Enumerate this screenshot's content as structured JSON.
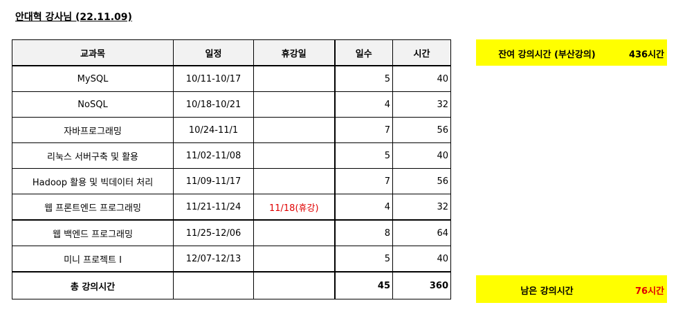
{
  "title": "안대혁 강사님 (22.11.09)",
  "table": {
    "headers": [
      "교과목",
      "일정",
      "휴강일",
      "일수",
      "시간"
    ],
    "rows": [
      {
        "subject": "MySQL",
        "period": "10/11-10/17",
        "holiday": "",
        "days": "5",
        "hours": "40"
      },
      {
        "subject": "NoSQL",
        "period": "10/18-10/21",
        "holiday": "",
        "days": "4",
        "hours": "32"
      },
      {
        "subject": "자바프로그래밍",
        "period": "10/24-11/1",
        "holiday": "",
        "days": "7",
        "hours": "56"
      },
      {
        "subject": "리눅스 서버구축 및 활용",
        "period": "11/02-11/08",
        "holiday": "",
        "days": "5",
        "hours": "40"
      },
      {
        "subject": "Hadoop 활용 및 빅데이터 처리",
        "period": "11/09-11/17",
        "holiday": "",
        "days": "7",
        "hours": "56"
      },
      {
        "subject": "웹 프론트엔드 프로그래밍",
        "period": "11/21-11/24",
        "holiday": "11/18(휴강)",
        "days": "4",
        "hours": "32"
      },
      {
        "subject": "웹 백엔드 프로그래밍",
        "period": "11/25-12/06",
        "holiday": "",
        "days": "8",
        "hours": "64"
      },
      {
        "subject": "미니 프로젝트 I",
        "period": "12/07-12/13",
        "holiday": "",
        "days": "5",
        "hours": "40"
      }
    ],
    "total": {
      "label": "총 강의시간",
      "days": "45",
      "hours": "360"
    }
  },
  "summary": {
    "remaining_busan_label": "잔여 강의시간 (부산강의)",
    "remaining_busan_value": "436시간",
    "left_label": "남은 강의시간",
    "left_value": "76시간"
  },
  "colors": {
    "highlight": "#ffff00",
    "red_text": "#e00000",
    "header_bg": "#f2f2f2"
  }
}
